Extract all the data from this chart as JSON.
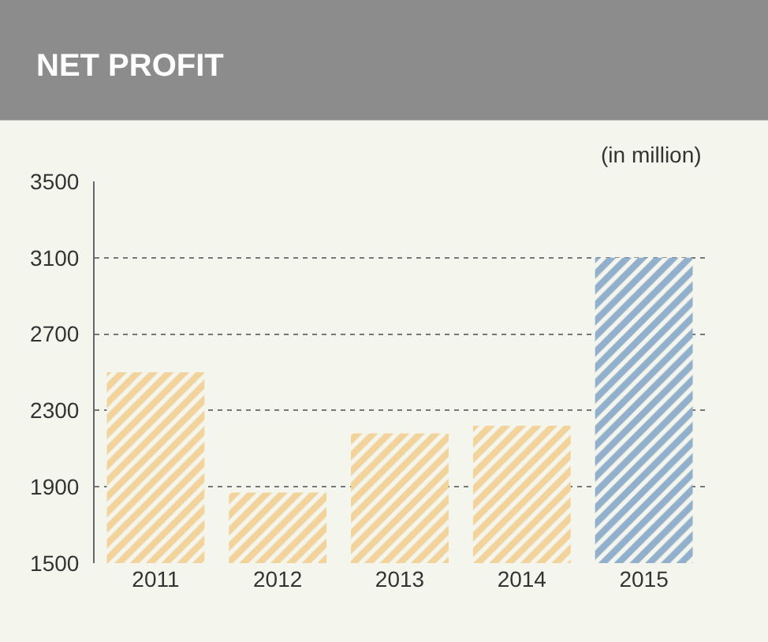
{
  "chart_data": {
    "type": "bar",
    "title": "NET PROFIT",
    "annotations": [
      "(in million)"
    ],
    "categories": [
      "2011",
      "2012",
      "2013",
      "2014",
      "2015"
    ],
    "values": [
      2500,
      1870,
      2180,
      2220,
      3100
    ],
    "colors": [
      "#f0b048",
      "#f0b048",
      "#f0b048",
      "#f0b048",
      "#2f6aa8"
    ],
    "ylim": [
      1500,
      3500
    ],
    "yticks": [
      1500,
      1900,
      2300,
      2700,
      3100,
      3500
    ],
    "grid": "y"
  }
}
